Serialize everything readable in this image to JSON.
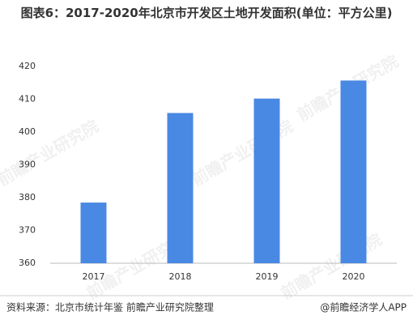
{
  "chart_data": {
    "type": "bar",
    "title": "图表6：2017-2020年北京市开发区土地开发面积(单位：平方公里)",
    "categories": [
      "2017",
      "2018",
      "2019",
      "2020"
    ],
    "values": [
      378.5,
      405.8,
      410.2,
      415.7
    ],
    "color": "#4a89e3",
    "ylim": [
      360,
      420
    ],
    "yticks": [
      360,
      370,
      380,
      390,
      400,
      410,
      420
    ],
    "grid": false,
    "source": "资料来源：北京市统计年鉴 前瞻产业研究院整理",
    "credit": "@前瞻经济学人APP",
    "watermark": "前瞻产业研究院"
  }
}
